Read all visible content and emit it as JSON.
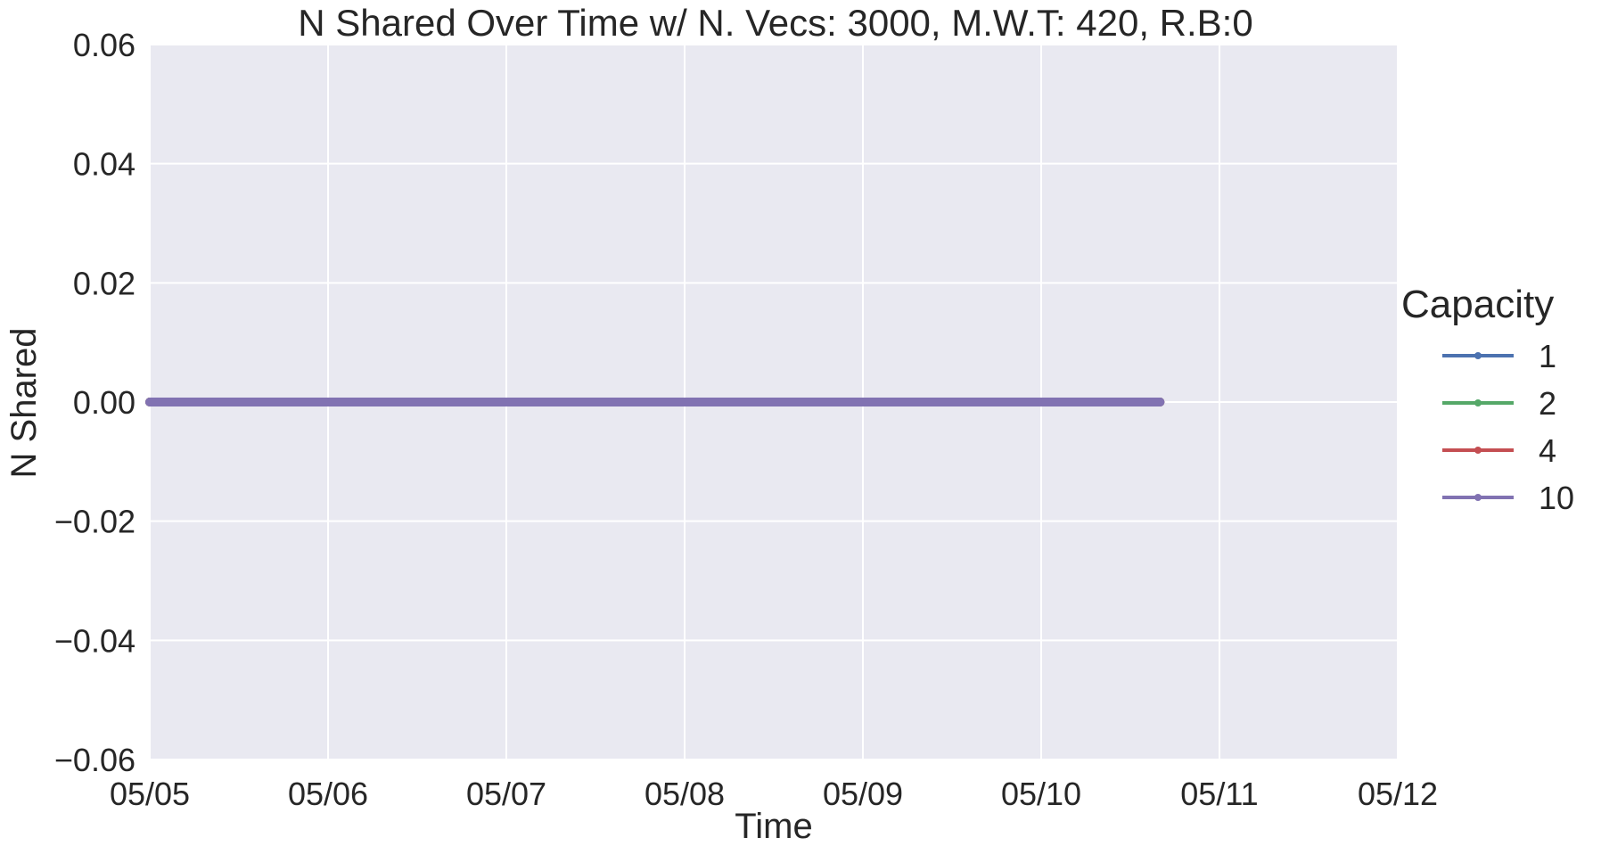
{
  "chart_data": {
    "type": "line",
    "title": "N Shared Over Time w/ N. Vecs: 3000, M.W.T: 420, R.B:0",
    "xlabel": "Time",
    "ylabel": "N Shared",
    "x_axis_type": "date",
    "xlim": [
      "05/05",
      "05/12"
    ],
    "ylim": [
      -0.06,
      0.06
    ],
    "x_ticks": [
      "05/05",
      "05/06",
      "05/07",
      "05/08",
      "05/09",
      "05/10",
      "05/11",
      "05/12"
    ],
    "y_ticks": [
      "0.06",
      "0.04",
      "0.02",
      "0.00",
      "−0.02",
      "−0.04",
      "−0.06"
    ],
    "y_tick_values": [
      0.06,
      0.04,
      0.02,
      0.0,
      -0.02,
      -0.04,
      -0.06
    ],
    "grid": true,
    "background": "#e9e9f1",
    "legend": {
      "title": "Capacity",
      "position": "right"
    },
    "series": [
      {
        "name": "1",
        "color": "#4c72b0",
        "x": [
          "05/05 00:00",
          "05/10 16:00"
        ],
        "y": [
          0,
          0
        ]
      },
      {
        "name": "2",
        "color": "#55a868",
        "x": [
          "05/05 00:00",
          "05/10 16:00"
        ],
        "y": [
          0,
          0
        ]
      },
      {
        "name": "4",
        "color": "#c44e52",
        "x": [
          "05/05 00:00",
          "05/10 16:00"
        ],
        "y": [
          0,
          0
        ]
      },
      {
        "name": "10",
        "color": "#8172b2",
        "x": [
          "05/05 00:00",
          "05/10 16:00"
        ],
        "y": [
          0,
          0
        ]
      }
    ]
  }
}
